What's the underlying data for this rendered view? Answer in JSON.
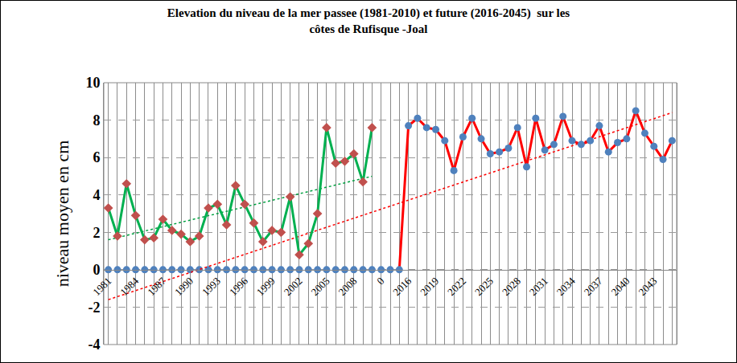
{
  "chart_data": {
    "type": "line",
    "title": [
      "Elevation du niveau de la mer passee (1981-2010) et future (2016-2045)  sur les",
      "côtes de Rufisque -Joal"
    ],
    "y_label": "niveau moyen en cm",
    "categories": [
      "1981",
      null,
      null,
      "1984",
      null,
      null,
      "1987",
      null,
      null,
      "1990",
      null,
      null,
      "1993",
      null,
      null,
      "1996",
      null,
      null,
      "1999",
      null,
      null,
      "2002",
      null,
      null,
      "2005",
      null,
      null,
      "2008",
      null,
      null,
      "0",
      null,
      null,
      "2016",
      null,
      null,
      "2019",
      null,
      null,
      "2022",
      null,
      null,
      "2025",
      null,
      null,
      "2028",
      null,
      null,
      "2031",
      null,
      null,
      "2034",
      null,
      null,
      "2037",
      null,
      null,
      "2040",
      null,
      null,
      "2043",
      null,
      null
    ],
    "series": [
      {
        "type": "scatter",
        "color": "#4f81bd",
        "marker": "circle",
        "values": [
          0,
          0,
          0,
          0,
          0,
          0,
          0,
          0,
          0,
          0,
          0,
          0,
          0,
          0,
          0,
          0,
          0,
          0,
          0,
          0,
          0,
          0,
          0,
          0,
          0,
          0,
          0,
          0,
          0,
          0,
          0,
          0,
          null,
          null,
          null,
          null,
          null,
          null,
          null,
          null,
          null,
          null,
          null,
          null,
          null,
          null,
          null,
          null,
          null,
          null,
          null,
          null,
          null,
          null,
          null,
          null,
          null,
          null,
          null,
          null,
          null,
          null,
          null
        ]
      },
      {
        "type": "trend",
        "color": "#00a040",
        "marker": "none",
        "line_style": "dotted",
        "values": [
          1.6,
          null,
          null,
          null,
          null,
          null,
          null,
          null,
          null,
          null,
          null,
          null,
          null,
          null,
          null,
          null,
          null,
          null,
          null,
          null,
          null,
          null,
          null,
          null,
          null,
          null,
          null,
          null,
          null,
          5.0,
          null,
          null,
          null,
          null,
          null,
          null,
          null,
          null,
          null,
          null,
          null,
          null,
          null,
          null,
          null,
          null,
          null,
          null,
          null,
          null,
          null,
          null,
          null,
          null,
          null,
          null,
          null,
          null,
          null,
          null,
          null,
          null,
          null
        ]
      },
      {
        "type": "trend",
        "color": "#ff0000",
        "marker": "none",
        "line_style": "dotted",
        "values": [
          -1.6,
          null,
          null,
          null,
          null,
          null,
          null,
          null,
          null,
          null,
          null,
          null,
          null,
          null,
          null,
          null,
          null,
          null,
          null,
          null,
          null,
          null,
          null,
          null,
          null,
          null,
          null,
          null,
          null,
          null,
          null,
          null,
          null,
          null,
          null,
          null,
          null,
          null,
          null,
          null,
          null,
          null,
          null,
          null,
          null,
          null,
          null,
          null,
          null,
          null,
          null,
          null,
          null,
          null,
          null,
          null,
          null,
          null,
          null,
          null,
          null,
          null,
          8.4
        ]
      },
      {
        "type": "line",
        "color": "#00b050",
        "marker": "diamond",
        "line_style": "solid",
        "colors": [
          "#c0504d",
          "#c0504d",
          "#c0504d",
          "#c0504d",
          "#c0504d",
          "#c0504d",
          "#c0504d",
          "#c0504d",
          "#c0504d",
          "#c0504d",
          "#c0504d",
          "#c0504d",
          "#c0504d",
          "#c0504d",
          "#c0504d",
          "#c0504d",
          "#c0504d",
          "#c0504d",
          "#c0504d",
          "#c0504d",
          "#c0504d",
          "#c0504d",
          "#c0504d",
          "#c0504d",
          "#c0504d",
          "#c0504d",
          "#c0504d",
          "#c0504d",
          "#c0504d",
          "#c0504d",
          "#c0504d",
          "#c0504d",
          "#c0504d",
          "#c0504d",
          "#c0504d",
          "#c0504d",
          "#c0504d",
          "#c0504d",
          "#c0504d",
          "#c0504d",
          "#c0504d",
          "#c0504d",
          "#c0504d",
          "#c0504d",
          "#c0504d",
          "#c0504d",
          "#c0504d",
          "#c0504d",
          "#c0504d",
          "#c0504d",
          "#c0504d",
          "#c0504d",
          "#c0504d",
          "#c0504d",
          "#c0504d",
          "#c0504d",
          "#c0504d",
          "#c0504d",
          "#c0504d",
          "#c0504d",
          "#c0504d",
          "#c0504d",
          "#c0504d"
        ],
        "values": [
          3.3,
          1.8,
          4.6,
          2.9,
          1.6,
          1.7,
          2.7,
          2.1,
          1.9,
          1.5,
          1.8,
          3.3,
          3.5,
          2.4,
          4.5,
          3.5,
          2.5,
          1.5,
          2.1,
          2.0,
          3.9,
          0.8,
          1.4,
          3.0,
          7.6,
          5.7,
          5.8,
          6.2,
          4.7,
          7.6,
          null,
          null,
          null,
          null,
          null,
          null,
          null,
          null,
          null,
          null,
          null,
          null,
          null,
          null,
          null,
          null,
          null,
          null,
          null,
          null,
          null,
          null,
          null,
          null,
          null,
          null,
          null,
          null,
          null,
          null,
          null,
          null,
          null
        ]
      },
      {
        "type": "line",
        "color": "#ff0000",
        "marker": "circle",
        "line_style": "solid",
        "colors": [
          "#4f81bd",
          "#4f81bd",
          "#4f81bd",
          "#4f81bd",
          "#4f81bd",
          "#4f81bd",
          "#4f81bd",
          "#4f81bd",
          "#4f81bd",
          "#4f81bd",
          "#4f81bd",
          "#4f81bd",
          "#4f81bd",
          "#4f81bd",
          "#4f81bd",
          "#4f81bd",
          "#4f81bd",
          "#4f81bd",
          "#4f81bd",
          "#4f81bd",
          "#4f81bd",
          "#4f81bd",
          "#4f81bd",
          "#4f81bd",
          "#4f81bd",
          "#4f81bd",
          "#4f81bd",
          "#4f81bd",
          "#4f81bd",
          "#4f81bd",
          "#4f81bd",
          "#4f81bd",
          "#4f81bd",
          "#4f81bd",
          "#4f81bd",
          "#4f81bd",
          "#4f81bd",
          "#4f81bd",
          "#4f81bd",
          "#4f81bd",
          "#4f81bd",
          "#4f81bd",
          "#4f81bd",
          "#4f81bd",
          "#4f81bd",
          "#4f81bd",
          "#4f81bd",
          "#4f81bd",
          "#4f81bd",
          "#4f81bd",
          "#4f81bd",
          "#4f81bd",
          "#4f81bd",
          "#4f81bd",
          "#4f81bd",
          "#4f81bd",
          "#4f81bd",
          "#4f81bd",
          "#4f81bd",
          "#4f81bd",
          "#4f81bd",
          "#4f81bd",
          "#4f81bd"
        ],
        "values": [
          null,
          null,
          null,
          null,
          null,
          null,
          null,
          null,
          null,
          null,
          null,
          null,
          null,
          null,
          null,
          null,
          null,
          null,
          null,
          null,
          null,
          null,
          null,
          null,
          null,
          null,
          null,
          null,
          null,
          null,
          null,
          null,
          0,
          7.7,
          8.1,
          7.6,
          7.5,
          6.9,
          5.3,
          7.1,
          8.1,
          7.0,
          6.2,
          6.3,
          6.5,
          7.6,
          5.5,
          8.1,
          6.4,
          6.7,
          8.2,
          6.9,
          6.7,
          6.9,
          7.7,
          6.3,
          6.8,
          7.0,
          8.5,
          7.3,
          6.6,
          5.9,
          6.9
        ]
      }
    ],
    "ylim": [
      -4,
      10
    ],
    "yticks": [
      -4,
      -2,
      0,
      2,
      4,
      6,
      8,
      10
    ],
    "grid": true
  }
}
